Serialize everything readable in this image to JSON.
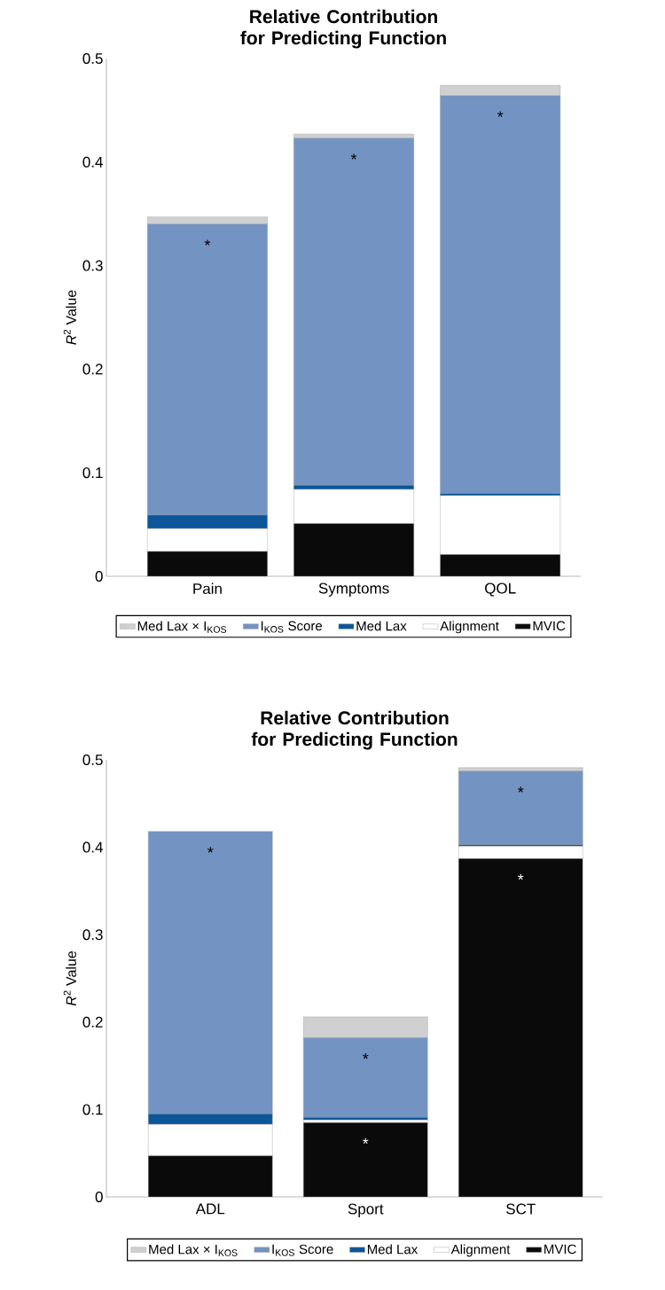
{
  "chart_data": [
    {
      "type": "bar",
      "title": "Relative Contribution for Predicting Function",
      "ylabel": "*R*$^{2}$ Value",
      "categories": [
        "Pain",
        "Symptoms",
        "QOL"
      ],
      "stacked": true,
      "legend": "bottom",
      "ylim": [
        0,
        0.5
      ],
      "yticks": [
        0,
        0.1,
        0.2,
        0.3,
        0.4,
        0.5
      ],
      "series": [
        {
          "name": "MVIC",
          "color": "#0a0a0a",
          "values": [
            0.024,
            0.051,
            0.021
          ]
        },
        {
          "name": "Alignment",
          "color": "#ffffff",
          "values": [
            0.022,
            0.033,
            0.057
          ]
        },
        {
          "name": "Med Lax",
          "color": "#0a5699",
          "values": [
            0.013,
            0.004,
            0.002
          ]
        },
        {
          "name": "I$_{KOS}$ Score",
          "color": "#7393c3",
          "values": [
            0.281,
            0.335,
            0.384
          ]
        },
        {
          "name": "Med Lax × I$_{KOS}$",
          "color": "#d0d0d0",
          "values": [
            0.007,
            0.004,
            0.01
          ]
        }
      ],
      "annotations": [
        {
          "text": "*",
          "x": "Pain",
          "y": 0.34
        },
        {
          "text": "*",
          "x": "Symptoms",
          "y": 0.423
        },
        {
          "text": "*",
          "x": "QOL",
          "y": 0.464
        }
      ]
    },
    {
      "type": "bar",
      "title": "Relative Contribution for Predicting Function",
      "ylabel": "*R*$^{2}$ Value",
      "categories": [
        "ADL",
        "Sport",
        "SCT"
      ],
      "stacked": true,
      "legend": "bottom",
      "ylim": [
        0,
        0.5
      ],
      "yticks": [
        0,
        0.1,
        0.2,
        0.3,
        0.4,
        0.5
      ],
      "series": [
        {
          "name": "MVIC",
          "color": "#0a0a0a",
          "values": [
            0.047,
            0.085,
            0.387
          ]
        },
        {
          "name": "Alignment",
          "color": "#ffffff",
          "values": [
            0.036,
            0.003,
            0.014
          ]
        },
        {
          "name": "Med Lax",
          "color": "#0a5699",
          "values": [
            0.012,
            0.003,
            0.002
          ]
        },
        {
          "name": "I$_{KOS}$ Score",
          "color": "#7393c3",
          "values": [
            0.323,
            0.091,
            0.084
          ]
        },
        {
          "name": "Med Lax × I$_{KOS}$",
          "color": "#d0d0d0",
          "values": [
            0,
            0.024,
            0.004
          ]
        }
      ],
      "annotations": [
        {
          "text": "*",
          "x": "ADL",
          "y": 0.418
        },
        {
          "text": "*",
          "x": "Sport",
          "y": 0.182
        },
        {
          "text": "*",
          "x": "Sport",
          "y": 0.085
        },
        {
          "text": "*",
          "x": "SCT",
          "y": 0.487
        },
        {
          "text": "*",
          "x": "SCT",
          "y": 0.387
        }
      ]
    }
  ]
}
